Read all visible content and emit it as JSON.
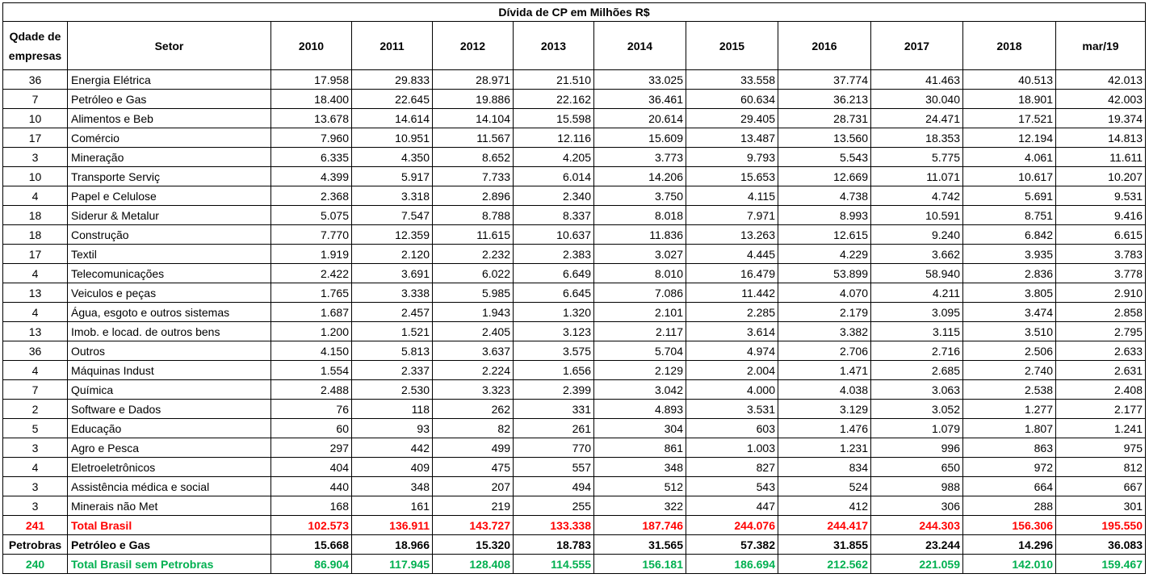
{
  "title": "Dívida de CP em Milhões R$",
  "headers": {
    "qdade": "Qdade de empresas",
    "setor": "Setor",
    "years": [
      "2010",
      "2011",
      "2012",
      "2013",
      "2014",
      "2015",
      "2016",
      "2017",
      "2018",
      "mar/19"
    ]
  },
  "rows": [
    {
      "qtd": "36",
      "setor": "Energia Elétrica",
      "values": [
        "17.958",
        "29.833",
        "28.971",
        "21.510",
        "33.025",
        "33.558",
        "37.774",
        "41.463",
        "40.513",
        "42.013"
      ]
    },
    {
      "qtd": "7",
      "setor": "Petróleo e Gas",
      "values": [
        "18.400",
        "22.645",
        "19.886",
        "22.162",
        "36.461",
        "60.634",
        "36.213",
        "30.040",
        "18.901",
        "42.003"
      ]
    },
    {
      "qtd": "10",
      "setor": "Alimentos e Beb",
      "values": [
        "13.678",
        "14.614",
        "14.104",
        "15.598",
        "20.614",
        "29.405",
        "28.731",
        "24.471",
        "17.521",
        "19.374"
      ]
    },
    {
      "qtd": "17",
      "setor": "Comércio",
      "values": [
        "7.960",
        "10.951",
        "11.567",
        "12.116",
        "15.609",
        "13.487",
        "13.560",
        "18.353",
        "12.194",
        "14.813"
      ]
    },
    {
      "qtd": "3",
      "setor": "Mineração",
      "values": [
        "6.335",
        "4.350",
        "8.652",
        "4.205",
        "3.773",
        "9.793",
        "5.543",
        "5.775",
        "4.061",
        "11.611"
      ]
    },
    {
      "qtd": "10",
      "setor": "Transporte Serviç",
      "values": [
        "4.399",
        "5.917",
        "7.733",
        "6.014",
        "14.206",
        "15.653",
        "12.669",
        "11.071",
        "10.617",
        "10.207"
      ]
    },
    {
      "qtd": "4",
      "setor": "Papel e Celulose",
      "values": [
        "2.368",
        "3.318",
        "2.896",
        "2.340",
        "3.750",
        "4.115",
        "4.738",
        "4.742",
        "5.691",
        "9.531"
      ]
    },
    {
      "qtd": "18",
      "setor": "Siderur & Metalur",
      "values": [
        "5.075",
        "7.547",
        "8.788",
        "8.337",
        "8.018",
        "7.971",
        "8.993",
        "10.591",
        "8.751",
        "9.416"
      ]
    },
    {
      "qtd": "18",
      "setor": "Construção",
      "values": [
        "7.770",
        "12.359",
        "11.615",
        "10.637",
        "11.836",
        "13.263",
        "12.615",
        "9.240",
        "6.842",
        "6.615"
      ]
    },
    {
      "qtd": "17",
      "setor": "Textil",
      "values": [
        "1.919",
        "2.120",
        "2.232",
        "2.383",
        "3.027",
        "4.445",
        "4.229",
        "3.662",
        "3.935",
        "3.783"
      ]
    },
    {
      "qtd": "4",
      "setor": "Telecomunicações",
      "values": [
        "2.422",
        "3.691",
        "6.022",
        "6.649",
        "8.010",
        "16.479",
        "53.899",
        "58.940",
        "2.836",
        "3.778"
      ]
    },
    {
      "qtd": "13",
      "setor": "Veiculos e peças",
      "values": [
        "1.765",
        "3.338",
        "5.985",
        "6.645",
        "7.086",
        "11.442",
        "4.070",
        "4.211",
        "3.805",
        "2.910"
      ]
    },
    {
      "qtd": "4",
      "setor": "Água, esgoto e outros sistemas",
      "values": [
        "1.687",
        "2.457",
        "1.943",
        "1.320",
        "2.101",
        "2.285",
        "2.179",
        "3.095",
        "3.474",
        "2.858"
      ]
    },
    {
      "qtd": "13",
      "setor": "Imob. e locad. de outros bens",
      "values": [
        "1.200",
        "1.521",
        "2.405",
        "3.123",
        "2.117",
        "3.614",
        "3.382",
        "3.115",
        "3.510",
        "2.795"
      ]
    },
    {
      "qtd": "36",
      "setor": "Outros",
      "values": [
        "4.150",
        "5.813",
        "3.637",
        "3.575",
        "5.704",
        "4.974",
        "2.706",
        "2.716",
        "2.506",
        "2.633"
      ]
    },
    {
      "qtd": "4",
      "setor": "Máquinas Indust",
      "values": [
        "1.554",
        "2.337",
        "2.224",
        "1.656",
        "2.129",
        "2.004",
        "1.471",
        "2.685",
        "2.740",
        "2.631"
      ]
    },
    {
      "qtd": "7",
      "setor": "Química",
      "values": [
        "2.488",
        "2.530",
        "3.323",
        "2.399",
        "3.042",
        "4.000",
        "4.038",
        "3.063",
        "2.538",
        "2.408"
      ]
    },
    {
      "qtd": "2",
      "setor": "Software e Dados",
      "values": [
        "76",
        "118",
        "262",
        "331",
        "4.893",
        "3.531",
        "3.129",
        "3.052",
        "1.277",
        "2.177"
      ]
    },
    {
      "qtd": "5",
      "setor": "Educação",
      "values": [
        "60",
        "93",
        "82",
        "261",
        "304",
        "603",
        "1.476",
        "1.079",
        "1.807",
        "1.241"
      ]
    },
    {
      "qtd": "3",
      "setor": "Agro e Pesca",
      "values": [
        "297",
        "442",
        "499",
        "770",
        "861",
        "1.003",
        "1.231",
        "996",
        "863",
        "975"
      ]
    },
    {
      "qtd": "4",
      "setor": "Eletroeletrônicos",
      "values": [
        "404",
        "409",
        "475",
        "557",
        "348",
        "827",
        "834",
        "650",
        "972",
        "812"
      ]
    },
    {
      "qtd": "3",
      "setor": "Assistência médica e social",
      "values": [
        "440",
        "348",
        "207",
        "494",
        "512",
        "543",
        "524",
        "988",
        "664",
        "667"
      ]
    },
    {
      "qtd": "3",
      "setor": "Minerais não Met",
      "values": [
        "168",
        "161",
        "219",
        "255",
        "322",
        "447",
        "412",
        "306",
        "288",
        "301"
      ]
    }
  ],
  "totals": [
    {
      "type": "total-brasil",
      "qtd": "241",
      "setor": "Total Brasil",
      "values": [
        "102.573",
        "136.911",
        "143.727",
        "133.338",
        "187.746",
        "244.076",
        "244.417",
        "244.303",
        "156.306",
        "195.550"
      ]
    },
    {
      "type": "petro",
      "qtd": "Petrobras",
      "setor": "Petróleo e Gas",
      "values": [
        "15.668",
        "18.966",
        "15.320",
        "18.783",
        "31.565",
        "57.382",
        "31.855",
        "23.244",
        "14.296",
        "36.083"
      ]
    },
    {
      "type": "sem-petro",
      "qtd": "240",
      "setor": "Total Brasil sem Petrobras",
      "values": [
        "86.904",
        "117.945",
        "128.408",
        "114.555",
        "156.181",
        "186.694",
        "212.562",
        "221.059",
        "142.010",
        "159.467"
      ]
    }
  ],
  "colors": {
    "total_brasil": "#ff0000",
    "sem_petrobras": "#00b050",
    "petrobras": "#000000"
  }
}
